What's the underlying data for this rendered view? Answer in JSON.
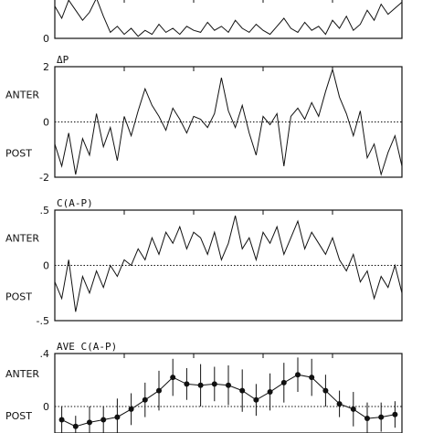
{
  "chart_data": [
    {
      "type": "line",
      "title": "",
      "ylim": [
        0,
        2
      ],
      "y_ticks": [
        0
      ],
      "y_labels": [],
      "series": [
        {
          "x": [
            0,
            2,
            4,
            6,
            8,
            10,
            12,
            14,
            16,
            18,
            20,
            22,
            24,
            26,
            28,
            30,
            32,
            34,
            36,
            38,
            40,
            42,
            44,
            46,
            48,
            50,
            52,
            54,
            56,
            58,
            60,
            62,
            64,
            66,
            68,
            70,
            72,
            74,
            76,
            78,
            80,
            82,
            84,
            86,
            88,
            90,
            92,
            94,
            96,
            98,
            100
          ],
          "y": [
            1.6,
            1.0,
            1.9,
            1.4,
            0.9,
            1.3,
            2.0,
            1.1,
            0.3,
            0.6,
            0.2,
            0.5,
            0.1,
            0.4,
            0.2,
            0.7,
            0.3,
            0.5,
            0.2,
            0.6,
            0.4,
            0.3,
            0.8,
            0.4,
            0.6,
            0.3,
            0.9,
            0.5,
            0.3,
            0.7,
            0.4,
            0.2,
            0.6,
            1.0,
            0.5,
            0.3,
            0.8,
            0.4,
            0.6,
            0.2,
            0.9,
            0.5,
            1.1,
            0.4,
            0.7,
            1.4,
            0.9,
            1.7,
            1.2,
            1.5,
            1.8
          ]
        }
      ]
    },
    {
      "type": "line",
      "title": "ΔP",
      "ylim": [
        -2,
        2
      ],
      "y_ticks": [
        2,
        0,
        -2
      ],
      "y_labels": [
        "ANTER",
        "POST"
      ],
      "reference_line": 0,
      "series": [
        {
          "x": [
            0,
            2,
            4,
            6,
            8,
            10,
            12,
            14,
            16,
            18,
            20,
            22,
            24,
            26,
            28,
            30,
            32,
            34,
            36,
            38,
            40,
            42,
            44,
            46,
            48,
            50,
            52,
            54,
            56,
            58,
            60,
            62,
            64,
            66,
            68,
            70,
            72,
            74,
            76,
            78,
            80,
            82,
            84,
            86,
            88,
            90,
            92,
            94,
            96,
            98,
            100
          ],
          "y": [
            -0.8,
            -1.6,
            -0.4,
            -1.9,
            -0.6,
            -1.2,
            0.3,
            -0.9,
            -0.2,
            -1.4,
            0.2,
            -0.5,
            0.4,
            1.2,
            0.6,
            0.2,
            -0.3,
            0.5,
            0.1,
            -0.4,
            0.2,
            0.1,
            -0.2,
            0.3,
            1.6,
            0.4,
            -0.2,
            0.6,
            -0.4,
            -1.2,
            0.2,
            -0.1,
            0.3,
            -1.6,
            0.2,
            0.5,
            0.1,
            0.7,
            0.2,
            1.1,
            1.9,
            0.9,
            0.3,
            -0.5,
            0.4,
            -1.3,
            -0.8,
            -1.9,
            -1.1,
            -0.5,
            -1.6
          ]
        }
      ]
    },
    {
      "type": "line",
      "title": "C(A-P)",
      "ylim": [
        -0.5,
        0.5
      ],
      "y_ticks": [
        0.5,
        0,
        -0.5
      ],
      "y_tick_labels": [
        ".5",
        "0",
        "-.5"
      ],
      "y_labels": [
        "ANTER",
        "POST"
      ],
      "reference_line": 0,
      "series": [
        {
          "x": [
            0,
            2,
            4,
            6,
            8,
            10,
            12,
            14,
            16,
            18,
            20,
            22,
            24,
            26,
            28,
            30,
            32,
            34,
            36,
            38,
            40,
            42,
            44,
            46,
            48,
            50,
            52,
            54,
            56,
            58,
            60,
            62,
            64,
            66,
            68,
            70,
            72,
            74,
            76,
            78,
            80,
            82,
            84,
            86,
            88,
            90,
            92,
            94,
            96,
            98,
            100
          ],
          "y": [
            -0.15,
            -0.3,
            0.05,
            -0.42,
            -0.1,
            -0.25,
            -0.05,
            -0.2,
            0.0,
            -0.1,
            0.05,
            0.0,
            0.15,
            0.05,
            0.25,
            0.1,
            0.3,
            0.2,
            0.35,
            0.15,
            0.3,
            0.25,
            0.1,
            0.3,
            0.05,
            0.2,
            0.45,
            0.15,
            0.25,
            0.05,
            0.3,
            0.2,
            0.35,
            0.1,
            0.25,
            0.4,
            0.15,
            0.3,
            0.2,
            0.1,
            0.25,
            0.05,
            -0.05,
            0.1,
            -0.15,
            -0.05,
            -0.3,
            -0.1,
            -0.2,
            0.0,
            -0.25
          ]
        }
      ]
    },
    {
      "type": "line",
      "title": "AVE C(A-P)",
      "ylim": [
        -0.2,
        0.4
      ],
      "y_ticks": [
        0.4,
        0
      ],
      "y_tick_labels": [
        ".4",
        "0"
      ],
      "y_labels": [
        "ANTER",
        "POST"
      ],
      "reference_line": 0,
      "series": [
        {
          "x": [
            2,
            6,
            10,
            14,
            18,
            22,
            26,
            30,
            34,
            38,
            42,
            46,
            50,
            54,
            58,
            62,
            66,
            70,
            74,
            78,
            82,
            86,
            90,
            94,
            98
          ],
          "y": [
            -0.1,
            -0.15,
            -0.12,
            -0.1,
            -0.08,
            -0.02,
            0.05,
            0.12,
            0.22,
            0.17,
            0.16,
            0.17,
            0.16,
            0.12,
            0.05,
            0.11,
            0.18,
            0.24,
            0.22,
            0.12,
            0.02,
            -0.02,
            -0.09,
            -0.08,
            -0.06
          ],
          "err": [
            0.1,
            0.08,
            0.12,
            0.1,
            0.14,
            0.12,
            0.13,
            0.15,
            0.14,
            0.12,
            0.16,
            0.13,
            0.15,
            0.16,
            0.12,
            0.14,
            0.15,
            0.13,
            0.14,
            0.12,
            0.1,
            0.13,
            0.12,
            0.11,
            0.1
          ]
        }
      ]
    }
  ]
}
